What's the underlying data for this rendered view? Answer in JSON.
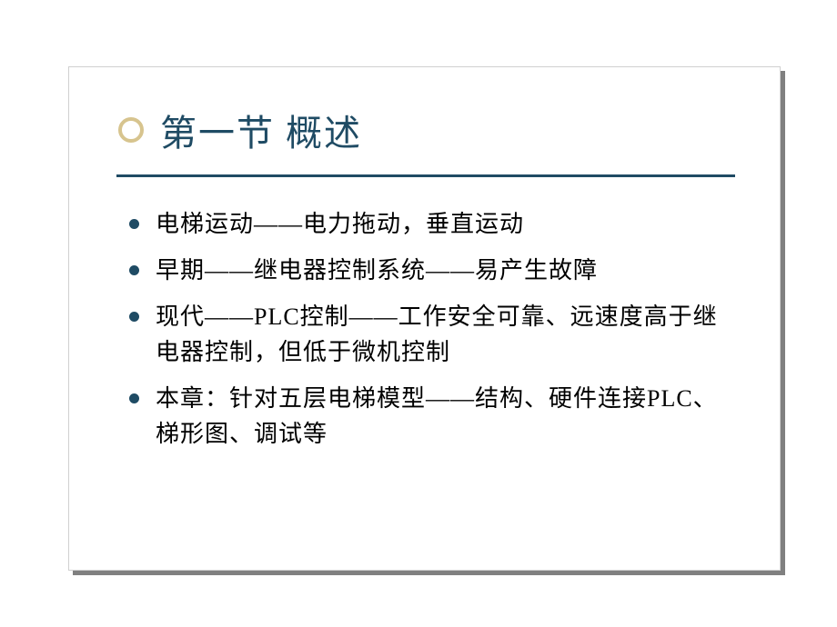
{
  "slide": {
    "title": "第一节  概述",
    "title_color": "#1f4b64",
    "title_fontsize": 40,
    "title_dot_border_color": "#d7c48e",
    "divider_color": "#1f4b64",
    "bullet_color": "#1f4b64",
    "body_fontsize": 26,
    "body_color": "#000000",
    "background_color": "#ffffff",
    "shadow_color": "#808080",
    "bullets": [
      "电梯运动——电力拖动，垂直运动",
      "早期——继电器控制系统——易产生故障",
      "现代——PLC控制——工作安全可靠、远速度高于继电器控制，但低于微机控制",
      "本章：针对五层电梯模型——结构、硬件连接PLC、梯形图、调试等"
    ]
  }
}
